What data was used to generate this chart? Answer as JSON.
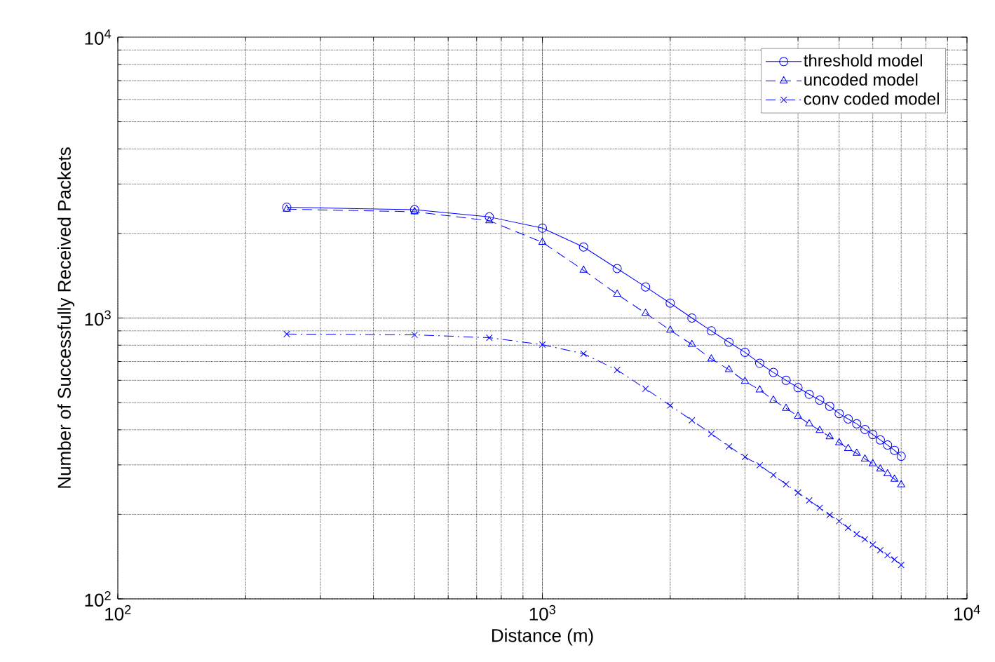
{
  "chart_data": {
    "type": "line",
    "xlabel": "Distance (m)",
    "ylabel": "Number of Successfully Received Packets",
    "log": "xy",
    "grid": true,
    "legend": "top right",
    "xlim": [
      100,
      10000
    ],
    "ylim": [
      100,
      10000
    ],
    "xticks": [
      {
        "value": 100,
        "label": "10$^{2}$"
      },
      {
        "value": 1000,
        "label": "10$^{3}$"
      },
      {
        "value": 10000,
        "label": "10$^{4}$"
      }
    ],
    "yticks": [
      {
        "value": 100,
        "label": "10$^{2}$"
      },
      {
        "value": 1000,
        "label": "10$^{3}$"
      },
      {
        "value": 10000,
        "label": "10$^{4}$"
      }
    ],
    "x": [
      250,
      500,
      750,
      1000,
      1250,
      1500,
      1750,
      2000,
      2250,
      2500,
      2750,
      3000,
      3250,
      3500,
      3750,
      4000,
      4250,
      4500,
      4750,
      5000,
      5250,
      5500,
      5750,
      6000,
      6250,
      6500,
      6750,
      7000
    ],
    "series": [
      {
        "name": "threshold model",
        "color": "#0000ff",
        "marker": "circle",
        "line_style": "solid",
        "values": [
          2480,
          2430,
          2290,
          2090,
          1790,
          1500,
          1290,
          1130,
          1000,
          900,
          820,
          755,
          690,
          640,
          600,
          565,
          535,
          510,
          485,
          457,
          437,
          420,
          401,
          385,
          368,
          353,
          338,
          322
        ]
      },
      {
        "name": "uncoded model",
        "color": "#0000ff",
        "marker": "triangle",
        "line_style": "dashed",
        "values": [
          2440,
          2390,
          2220,
          1860,
          1480,
          1215,
          1040,
          905,
          805,
          715,
          655,
          595,
          555,
          510,
          477,
          447,
          420,
          398,
          378,
          360,
          343,
          330,
          315,
          303,
          290,
          279,
          267,
          255
        ]
      },
      {
        "name": "conv coded model",
        "color": "#0000ff",
        "marker": "cross",
        "line_style": "dashdot",
        "values": [
          877,
          871,
          851,
          804,
          746,
          653,
          560,
          488,
          432,
          387,
          349,
          320,
          299,
          276,
          256,
          239,
          224,
          211,
          199,
          189,
          179,
          170,
          163,
          156,
          149,
          143,
          138,
          132
        ]
      }
    ]
  }
}
